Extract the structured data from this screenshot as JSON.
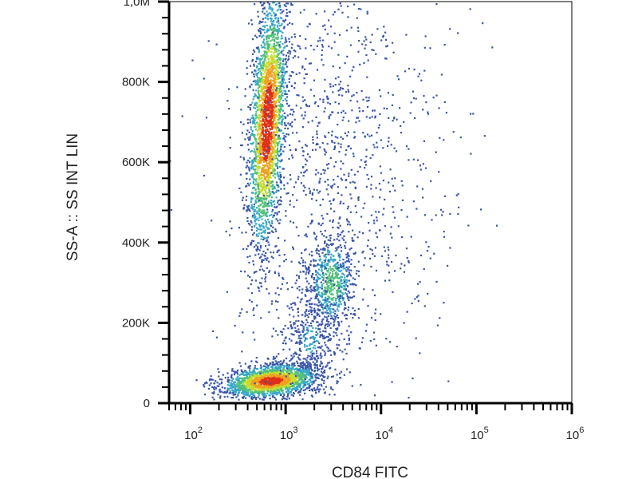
{
  "chart_data": {
    "type": "scatter",
    "style": "density-dot-plot",
    "title": "",
    "xlabel": "CD84 FITC",
    "ylabel": "SS-A :: SS INT LIN",
    "xscale": "log",
    "yscale": "linear",
    "xlim": [
      60,
      1000000
    ],
    "ylim": [
      0,
      1000000
    ],
    "grid": false,
    "x_ticks": [
      {
        "value": 100,
        "base": "10",
        "exp": "2"
      },
      {
        "value": 1000,
        "base": "10",
        "exp": "3"
      },
      {
        "value": 10000,
        "base": "10",
        "exp": "4"
      },
      {
        "value": 100000,
        "base": "10",
        "exp": "5"
      },
      {
        "value": 1000000,
        "base": "10",
        "exp": "6"
      }
    ],
    "y_ticks": [
      {
        "value": 0,
        "label": "0"
      },
      {
        "value": 200000,
        "label": "200K"
      },
      {
        "value": 400000,
        "label": "400K"
      },
      {
        "value": 600000,
        "label": "600K"
      },
      {
        "value": 800000,
        "label": "800K"
      },
      {
        "value": 1000000,
        "label": "1,0M"
      }
    ],
    "density_colors": [
      "#3a55a8",
      "#37a8c8",
      "#52c07a",
      "#c8dc2c",
      "#f0a020",
      "#e03018"
    ],
    "populations": [
      {
        "x_center": 650,
        "y_center": 700000,
        "x_spread_decades": 0.1,
        "y_spread": 150000,
        "y_slope_per_decade": 600000,
        "count": 2600,
        "peak_density": 1.0
      },
      {
        "x_center": 3000,
        "y_center": 300000,
        "x_spread_decades": 0.12,
        "y_spread": 60000,
        "y_slope_per_decade": 0,
        "count": 600,
        "peak_density": 0.45
      },
      {
        "x_center": 700,
        "y_center": 55000,
        "x_spread_decades": 0.25,
        "y_spread": 20000,
        "y_slope_per_decade": 25000,
        "count": 2000,
        "peak_density": 0.95
      },
      {
        "x_center": 1800,
        "y_center": 160000,
        "x_spread_decades": 0.15,
        "y_spread": 60000,
        "y_slope_per_decade": 0,
        "count": 300,
        "peak_density": 0.2
      },
      {
        "x_center": 3000,
        "y_center": 550000,
        "x_spread_decades": 0.5,
        "y_spread": 270000,
        "y_slope_per_decade": 0,
        "count": 1100,
        "peak_density": 0.1
      },
      {
        "x_center": 30000,
        "y_center": 700000,
        "x_spread_decades": 0.45,
        "y_spread": 200000,
        "y_slope_per_decade": 0,
        "count": 60,
        "peak_density": 0.05
      }
    ]
  }
}
